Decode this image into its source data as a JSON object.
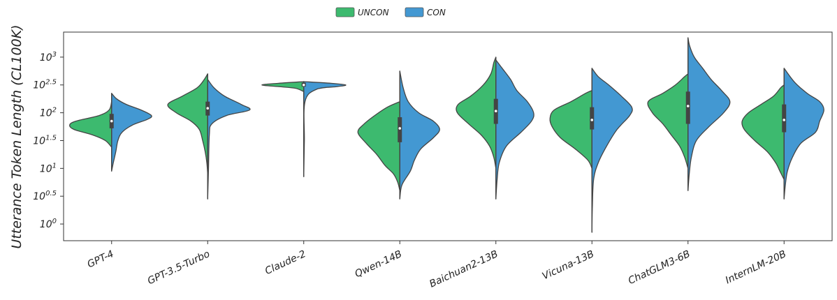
{
  "chart_data": {
    "type": "violin",
    "split": true,
    "ylabel": "Utterance Token Length (CL100K)",
    "xlabel": "",
    "yscale": "log10",
    "ylim_exp": [
      -0.3,
      3.45
    ],
    "yticks": [
      {
        "exp": 0,
        "base": "10",
        "sup": "0"
      },
      {
        "exp": 0.5,
        "base": "10",
        "sup": "0.5"
      },
      {
        "exp": 1,
        "base": "10",
        "sup": "1"
      },
      {
        "exp": 1.5,
        "base": "10",
        "sup": "1.5"
      },
      {
        "exp": 2,
        "base": "10",
        "sup": "2"
      },
      {
        "exp": 2.5,
        "base": "10",
        "sup": "2.5"
      },
      {
        "exp": 3,
        "base": "10",
        "sup": "3"
      }
    ],
    "legend": {
      "position": "top-center",
      "entries": [
        {
          "name": "UNCON",
          "color": "#3dba6f"
        },
        {
          "name": "CON",
          "color": "#4398d2"
        }
      ]
    },
    "categories": [
      "GPT-4",
      "GPT-3.5-Turbo",
      "Claude-2",
      "Qwen-14B",
      "Baichuan2-13B",
      "Vicuna-13B",
      "ChatGLM3-6B",
      "InternLM-20B"
    ],
    "series": [
      {
        "name": "UNCON",
        "color": "#3dba6f",
        "violins": [
          {
            "min": 1.38,
            "max": 2.2,
            "profile": [
              [
                1.38,
                0
              ],
              [
                1.5,
                0.15
              ],
              [
                1.6,
                0.45
              ],
              [
                1.7,
                0.9
              ],
              [
                1.78,
                1
              ],
              [
                1.85,
                0.85
              ],
              [
                1.95,
                0.3
              ],
              [
                2.05,
                0.06
              ],
              [
                2.2,
                0
              ]
            ]
          },
          {
            "min": 0.9,
            "max": 2.7,
            "profile": [
              [
                0.9,
                0
              ],
              [
                1.1,
                0.02
              ],
              [
                1.3,
                0.06
              ],
              [
                1.5,
                0.12
              ],
              [
                1.7,
                0.2
              ],
              [
                1.85,
                0.4
              ],
              [
                2.0,
                0.75
              ],
              [
                2.15,
                0.95
              ],
              [
                2.3,
                0.6
              ],
              [
                2.45,
                0.25
              ],
              [
                2.6,
                0.08
              ],
              [
                2.7,
                0
              ]
            ]
          },
          {
            "min": 2.38,
            "max": 2.56,
            "profile": [
              [
                2.38,
                0
              ],
              [
                2.44,
                0.2
              ],
              [
                2.47,
                0.6
              ],
              [
                2.5,
                1
              ],
              [
                2.53,
                0.6
              ],
              [
                2.56,
                0
              ]
            ]
          },
          {
            "min": 0.6,
            "max": 2.2,
            "profile": [
              [
                0.6,
                0
              ],
              [
                0.75,
                0.05
              ],
              [
                0.9,
                0.15
              ],
              [
                1.05,
                0.35
              ],
              [
                1.25,
                0.55
              ],
              [
                1.45,
                0.8
              ],
              [
                1.65,
                1
              ],
              [
                1.8,
                0.85
              ],
              [
                1.95,
                0.6
              ],
              [
                2.1,
                0.3
              ],
              [
                2.2,
                0
              ]
            ]
          },
          {
            "min": 1.0,
            "max": 3.0,
            "profile": [
              [
                1.0,
                0
              ],
              [
                1.2,
                0.05
              ],
              [
                1.4,
                0.15
              ],
              [
                1.6,
                0.35
              ],
              [
                1.8,
                0.65
              ],
              [
                2.0,
                0.92
              ],
              [
                2.15,
                0.9
              ],
              [
                2.3,
                0.6
              ],
              [
                2.5,
                0.3
              ],
              [
                2.7,
                0.12
              ],
              [
                2.9,
                0.05
              ],
              [
                3.0,
                0
              ]
            ]
          },
          {
            "min": 1.0,
            "max": 2.4,
            "profile": [
              [
                1.0,
                0
              ],
              [
                1.15,
                0.1
              ],
              [
                1.35,
                0.4
              ],
              [
                1.55,
                0.75
              ],
              [
                1.75,
                0.95
              ],
              [
                1.9,
                1
              ],
              [
                2.05,
                0.9
              ],
              [
                2.2,
                0.5
              ],
              [
                2.35,
                0.15
              ],
              [
                2.4,
                0
              ]
            ]
          },
          {
            "min": 1.0,
            "max": 2.7,
            "profile": [
              [
                1.0,
                0
              ],
              [
                1.2,
                0.08
              ],
              [
                1.4,
                0.2
              ],
              [
                1.6,
                0.4
              ],
              [
                1.8,
                0.6
              ],
              [
                2.0,
                0.85
              ],
              [
                2.2,
                0.95
              ],
              [
                2.35,
                0.6
              ],
              [
                2.5,
                0.3
              ],
              [
                2.65,
                0.08
              ],
              [
                2.7,
                0
              ]
            ]
          },
          {
            "min": 0.8,
            "max": 2.5,
            "profile": [
              [
                0.8,
                0
              ],
              [
                0.95,
                0.1
              ],
              [
                1.1,
                0.2
              ],
              [
                1.3,
                0.4
              ],
              [
                1.5,
                0.7
              ],
              [
                1.7,
                0.95
              ],
              [
                1.85,
                1
              ],
              [
                2.0,
                0.85
              ],
              [
                2.15,
                0.55
              ],
              [
                2.3,
                0.25
              ],
              [
                2.45,
                0.08
              ],
              [
                2.5,
                0
              ]
            ]
          }
        ]
      },
      {
        "name": "CON",
        "color": "#4398d2",
        "violins": [
          {
            "min": 0.95,
            "max": 2.35,
            "profile": [
              [
                0.95,
                0
              ],
              [
                1.1,
                0.04
              ],
              [
                1.3,
                0.1
              ],
              [
                1.5,
                0.15
              ],
              [
                1.65,
                0.25
              ],
              [
                1.78,
                0.5
              ],
              [
                1.88,
                0.85
              ],
              [
                1.95,
                0.95
              ],
              [
                2.05,
                0.7
              ],
              [
                2.15,
                0.35
              ],
              [
                2.25,
                0.12
              ],
              [
                2.35,
                0
              ]
            ]
          },
          {
            "min": 0.45,
            "max": 2.6,
            "profile": [
              [
                0.45,
                0
              ],
              [
                1.0,
                0.02
              ],
              [
                1.6,
                0.04
              ],
              [
                1.8,
                0.1
              ],
              [
                1.95,
                0.45
              ],
              [
                2.05,
                1
              ],
              [
                2.15,
                0.8
              ],
              [
                2.3,
                0.4
              ],
              [
                2.45,
                0.15
              ],
              [
                2.6,
                0
              ]
            ]
          },
          {
            "min": 0.85,
            "max": 2.56,
            "profile": [
              [
                0.85,
                0
              ],
              [
                1.5,
                0.015
              ],
              [
                2.2,
                0.03
              ],
              [
                2.42,
                0.3
              ],
              [
                2.47,
                0.8
              ],
              [
                2.5,
                1
              ],
              [
                2.53,
                0.65
              ],
              [
                2.56,
                0
              ]
            ]
          },
          {
            "min": 0.45,
            "max": 2.75,
            "profile": [
              [
                0.45,
                0
              ],
              [
                0.7,
                0.05
              ],
              [
                0.95,
                0.25
              ],
              [
                1.15,
                0.35
              ],
              [
                1.35,
                0.5
              ],
              [
                1.55,
                0.8
              ],
              [
                1.7,
                0.95
              ],
              [
                1.85,
                0.8
              ],
              [
                2.0,
                0.45
              ],
              [
                2.2,
                0.2
              ],
              [
                2.45,
                0.08
              ],
              [
                2.75,
                0
              ]
            ]
          },
          {
            "min": 0.45,
            "max": 2.95,
            "profile": [
              [
                0.45,
                0
              ],
              [
                0.8,
                0.03
              ],
              [
                1.1,
                0.08
              ],
              [
                1.4,
                0.25
              ],
              [
                1.65,
                0.6
              ],
              [
                1.85,
                0.85
              ],
              [
                2.0,
                0.9
              ],
              [
                2.2,
                0.75
              ],
              [
                2.4,
                0.5
              ],
              [
                2.6,
                0.35
              ],
              [
                2.8,
                0.15
              ],
              [
                2.95,
                0
              ]
            ]
          },
          {
            "min": -0.15,
            "max": 2.8,
            "profile": [
              [
                -0.15,
                0
              ],
              [
                0.3,
                0.01
              ],
              [
                0.8,
                0.04
              ],
              [
                1.1,
                0.15
              ],
              [
                1.4,
                0.35
              ],
              [
                1.7,
                0.6
              ],
              [
                1.95,
                0.9
              ],
              [
                2.1,
                0.95
              ],
              [
                2.3,
                0.7
              ],
              [
                2.5,
                0.4
              ],
              [
                2.65,
                0.15
              ],
              [
                2.8,
                0
              ]
            ]
          },
          {
            "min": 0.6,
            "max": 3.35,
            "profile": [
              [
                0.6,
                0
              ],
              [
                0.9,
                0.03
              ],
              [
                1.2,
                0.08
              ],
              [
                1.5,
                0.2
              ],
              [
                1.75,
                0.5
              ],
              [
                2.0,
                0.85
              ],
              [
                2.2,
                1
              ],
              [
                2.4,
                0.8
              ],
              [
                2.6,
                0.55
              ],
              [
                2.8,
                0.35
              ],
              [
                3.0,
                0.15
              ],
              [
                3.2,
                0.04
              ],
              [
                3.35,
                0
              ]
            ]
          },
          {
            "min": 0.45,
            "max": 2.8,
            "profile": [
              [
                0.45,
                0
              ],
              [
                0.7,
                0.03
              ],
              [
                0.95,
                0.08
              ],
              [
                1.2,
                0.2
              ],
              [
                1.45,
                0.4
              ],
              [
                1.65,
                0.75
              ],
              [
                1.85,
                0.85
              ],
              [
                2.05,
                0.95
              ],
              [
                2.2,
                0.85
              ],
              [
                2.35,
                0.55
              ],
              [
                2.55,
                0.25
              ],
              [
                2.8,
                0
              ]
            ]
          }
        ]
      }
    ],
    "boxes": [
      {
        "q1": 1.72,
        "median": 1.85,
        "q3": 1.98
      },
      {
        "q1": 1.95,
        "median": 2.08,
        "q3": 2.2
      },
      {
        "q1": 2.47,
        "median": 2.5,
        "q3": 2.54
      },
      {
        "q1": 1.47,
        "median": 1.72,
        "q3": 1.92
      },
      {
        "q1": 1.8,
        "median": 2.03,
        "q3": 2.25
      },
      {
        "q1": 1.7,
        "median": 1.87,
        "q3": 2.1
      },
      {
        "q1": 1.8,
        "median": 2.12,
        "q3": 2.38
      },
      {
        "q1": 1.65,
        "median": 1.87,
        "q3": 2.15
      }
    ]
  }
}
